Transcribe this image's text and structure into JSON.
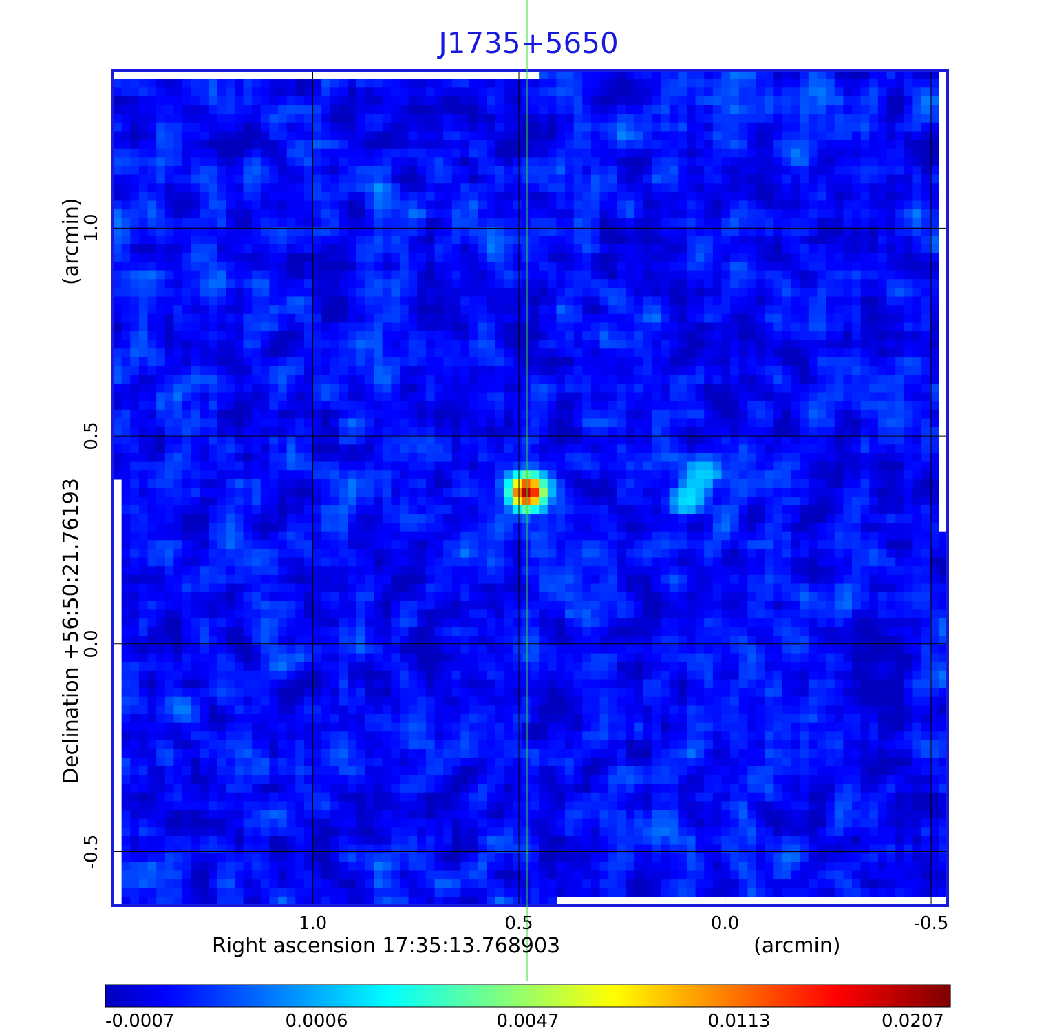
{
  "chart_data": {
    "type": "heatmap",
    "title": "J1735+5650",
    "xlabel": "Right ascension  17:35:13.768903",
    "xlabel_unit": "(arcmin)",
    "ylabel": "Declination  +56:50:21.76193",
    "ylabel_unit": "(arcmin)",
    "x_ticks": [
      "1.0",
      "0.5",
      "0.0",
      "-0.5"
    ],
    "x_tick_values": [
      1.0,
      0.5,
      0.0,
      -0.5
    ],
    "y_ticks": [
      "1.0",
      "0.5",
      "0.0",
      "-0.5"
    ],
    "y_tick_values": [
      1.0,
      0.5,
      0.0,
      -0.5
    ],
    "xlim": [
      1.485,
      -0.54
    ],
    "ylim": [
      -0.63,
      1.38
    ],
    "grid": true,
    "crosshair": {
      "ra_offset": 0.48,
      "dec_offset": 0.365,
      "color": "#33dd33"
    },
    "sources": [
      {
        "ra_offset": 0.48,
        "dec_offset": 0.365,
        "peak": 0.0207
      },
      {
        "ra_offset": 0.09,
        "dec_offset": 0.345,
        "peak": 0.0022
      },
      {
        "ra_offset": 0.05,
        "dec_offset": 0.405,
        "peak": 0.002
      }
    ],
    "colorbar": {
      "labels": [
        "-0.0007",
        "0.0006",
        "0.0047",
        "0.0113",
        "0.0207"
      ],
      "values": [
        -0.0007,
        0.0006,
        0.0047,
        0.0113,
        0.0207
      ],
      "colormap": "jet"
    },
    "frame_color": "#1a1adc"
  }
}
